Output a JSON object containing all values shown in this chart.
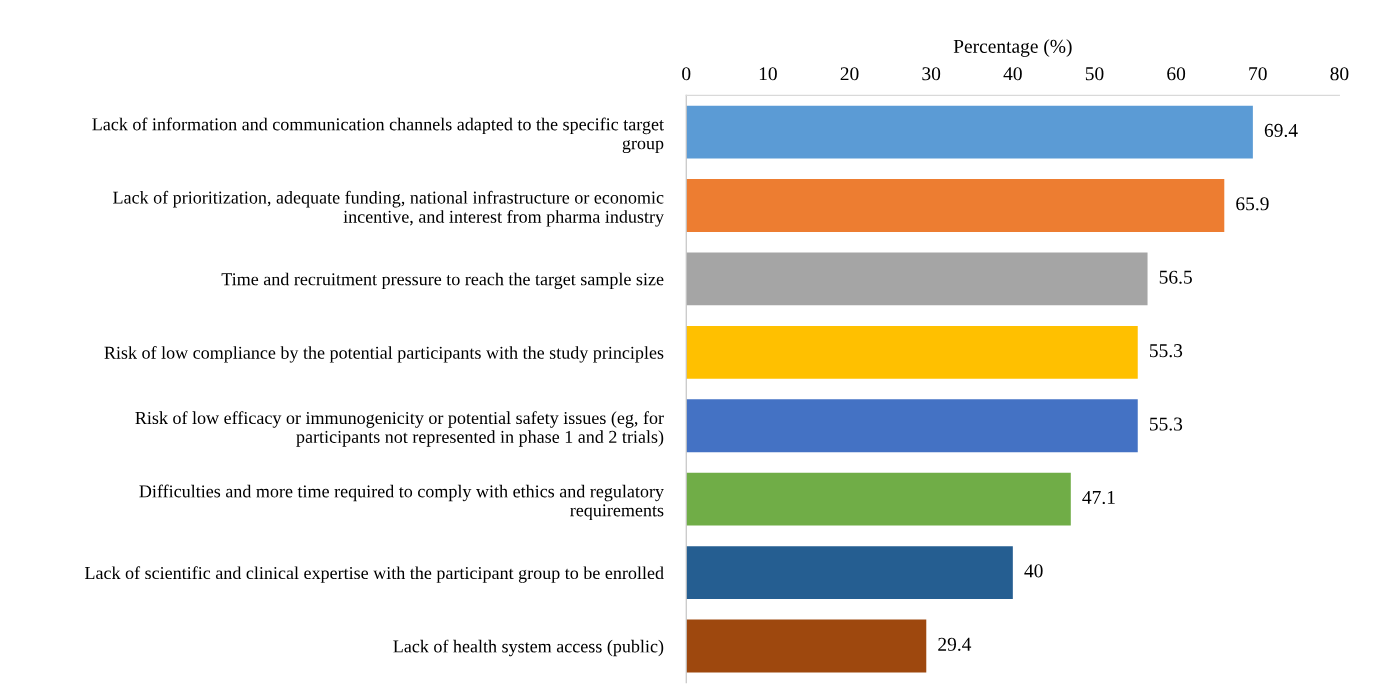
{
  "chart_data": {
    "type": "bar",
    "orientation": "horizontal",
    "xlabel": "Percentage (%)",
    "categories": [
      "Lack of information and communication channels adapted to the specific target\ngroup",
      "Lack of prioritization, adequate funding, national infrastructure or economic\nincentive, and interest from pharma industry",
      "Time and recruitment pressure to reach the target sample size",
      "Risk of low compliance by the potential participants with the study principles",
      "Risk of low efficacy or immunogenicity or potential safety issues (eg, for\nparticipants not represented in phase 1 and 2 trials)",
      "Difficulties and more time required to comply with ethics and regulatory\nrequirements",
      "Lack of scientific and clinical expertise with the participant group to be enrolled",
      "Lack of health system access (public)"
    ],
    "values": [
      69.4,
      65.9,
      56.5,
      55.3,
      55.3,
      47.1,
      40,
      29.4
    ],
    "colors": [
      "#5b9bd5",
      "#ed7d31",
      "#a5a5a5",
      "#ffc000",
      "#4472c4",
      "#70ad47",
      "#255e91",
      "#9e480e"
    ],
    "data_labels": true,
    "xlim": [
      0,
      80
    ],
    "xticks": [
      0,
      10,
      20,
      30,
      40,
      50,
      60,
      70,
      80
    ],
    "grid": false
  }
}
